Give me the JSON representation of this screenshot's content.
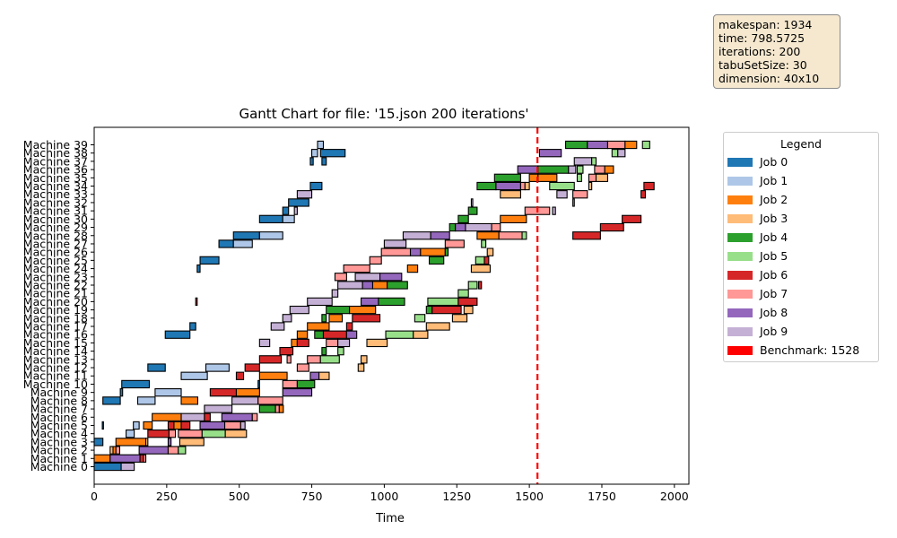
{
  "info": [
    "makespan: 1934",
    "time: 798.5725",
    "iterations: 200",
    "tabuSetSize: 30",
    "dimension: 40x10"
  ],
  "chart_data": {
    "type": "gantt",
    "title": "Gantt Chart for file: '15.json 200 iterations'",
    "xlabel": "Time",
    "ylabel": "",
    "xlim": [
      0,
      2050
    ],
    "xticks": [
      0,
      250,
      500,
      750,
      1000,
      1250,
      1500,
      1750,
      2000
    ],
    "machines": [
      "Machine 0",
      "Machine 1",
      "Machine 2",
      "Machine 3",
      "Machine 4",
      "Machine 5",
      "Machine 6",
      "Machine 7",
      "Machine 8",
      "Machine 9",
      "Machine 10",
      "Machine 11",
      "Machine 12",
      "Machine 13",
      "Machine 14",
      "Machine 15",
      "Machine 16",
      "Machine 17",
      "Machine 18",
      "Machine 19",
      "Machine 20",
      "Machine 21",
      "Machine 22",
      "Machine 23",
      "Machine 24",
      "Machine 25",
      "Machine 26",
      "Machine 27",
      "Machine 28",
      "Machine 29",
      "Machine 30",
      "Machine 31",
      "Machine 32",
      "Machine 33",
      "Machine 34",
      "Machine 35",
      "Machine 36",
      "Machine 37",
      "Machine 38",
      "Machine 39"
    ],
    "benchmark": 1528,
    "legend": {
      "title": "Legend",
      "placement": "outside-right",
      "items": [
        "Job 0",
        "Job 1",
        "Job 2",
        "Job 3",
        "Job 4",
        "Job 5",
        "Job 6",
        "Job 7",
        "Job 8",
        "Job 9",
        "Benchmark: 1528"
      ]
    },
    "job_colors": [
      "#1f77b4",
      "#aec7e8",
      "#ff7f0e",
      "#ffbb78",
      "#2ca02c",
      "#98df8a",
      "#d62728",
      "#ff9896",
      "#9467bd",
      "#c5b0d5"
    ],
    "benchmark_color": "#ff0000",
    "tasks": [
      [
        0,
        0,
        0,
        93
      ],
      [
        0,
        9,
        93,
        138
      ],
      [
        1,
        2,
        0,
        55
      ],
      [
        1,
        8,
        55,
        158
      ],
      [
        1,
        6,
        158,
        170
      ],
      [
        1,
        7,
        170,
        178
      ],
      [
        2,
        3,
        55,
        65
      ],
      [
        2,
        2,
        65,
        75
      ],
      [
        2,
        7,
        75,
        88
      ],
      [
        2,
        8,
        155,
        255
      ],
      [
        2,
        7,
        255,
        290
      ],
      [
        2,
        5,
        290,
        315
      ],
      [
        3,
        0,
        0,
        30
      ],
      [
        3,
        2,
        75,
        178
      ],
      [
        3,
        3,
        178,
        185
      ],
      [
        3,
        8,
        255,
        265
      ],
      [
        3,
        3,
        295,
        378
      ],
      [
        4,
        1,
        110,
        138
      ],
      [
        4,
        6,
        185,
        258
      ],
      [
        4,
        7,
        258,
        280
      ],
      [
        4,
        7,
        290,
        372
      ],
      [
        4,
        5,
        372,
        452
      ],
      [
        4,
        3,
        452,
        525
      ],
      [
        5,
        0,
        28,
        32
      ],
      [
        5,
        1,
        135,
        155
      ],
      [
        5,
        2,
        170,
        200
      ],
      [
        5,
        6,
        255,
        275
      ],
      [
        5,
        2,
        275,
        300
      ],
      [
        5,
        6,
        300,
        330
      ],
      [
        5,
        8,
        365,
        450
      ],
      [
        5,
        7,
        450,
        505
      ],
      [
        5,
        9,
        505,
        520
      ],
      [
        6,
        2,
        200,
        300
      ],
      [
        6,
        9,
        300,
        380
      ],
      [
        6,
        6,
        380,
        400
      ],
      [
        6,
        8,
        440,
        545
      ],
      [
        6,
        7,
        545,
        562
      ],
      [
        7,
        9,
        380,
        475
      ],
      [
        7,
        4,
        570,
        625
      ],
      [
        7,
        7,
        625,
        638
      ],
      [
        7,
        2,
        638,
        652
      ],
      [
        8,
        0,
        30,
        90
      ],
      [
        8,
        1,
        150,
        210
      ],
      [
        8,
        2,
        300,
        357
      ],
      [
        8,
        9,
        475,
        565
      ],
      [
        8,
        7,
        565,
        650
      ],
      [
        9,
        0,
        90,
        98
      ],
      [
        9,
        1,
        210,
        300
      ],
      [
        9,
        6,
        400,
        490
      ],
      [
        9,
        2,
        490,
        570
      ],
      [
        9,
        8,
        650,
        750
      ],
      [
        10,
        0,
        95,
        190
      ],
      [
        10,
        0,
        565,
        570
      ],
      [
        10,
        7,
        650,
        700
      ],
      [
        10,
        4,
        700,
        760
      ],
      [
        11,
        6,
        490,
        515
      ],
      [
        11,
        1,
        300,
        390
      ],
      [
        11,
        2,
        570,
        665
      ],
      [
        11,
        8,
        745,
        775
      ],
      [
        11,
        3,
        775,
        810
      ],
      [
        12,
        0,
        185,
        245
      ],
      [
        12,
        1,
        385,
        465
      ],
      [
        12,
        6,
        520,
        570
      ],
      [
        12,
        7,
        700,
        740
      ],
      [
        12,
        3,
        910,
        930
      ],
      [
        13,
        6,
        570,
        645
      ],
      [
        13,
        7,
        665,
        678
      ],
      [
        13,
        7,
        735,
        780
      ],
      [
        13,
        5,
        780,
        845
      ],
      [
        13,
        3,
        920,
        940
      ],
      [
        14,
        6,
        640,
        685
      ],
      [
        14,
        4,
        785,
        800
      ],
      [
        14,
        5,
        840,
        860
      ],
      [
        15,
        9,
        570,
        605
      ],
      [
        15,
        2,
        680,
        700
      ],
      [
        15,
        6,
        700,
        740
      ],
      [
        15,
        7,
        800,
        840
      ],
      [
        15,
        9,
        840,
        880
      ],
      [
        15,
        3,
        940,
        1010
      ],
      [
        16,
        0,
        245,
        330
      ],
      [
        16,
        2,
        700,
        735
      ],
      [
        16,
        4,
        760,
        790
      ],
      [
        16,
        6,
        790,
        870
      ],
      [
        16,
        8,
        870,
        905
      ],
      [
        16,
        5,
        1005,
        1100
      ],
      [
        16,
        3,
        1100,
        1150
      ],
      [
        17,
        0,
        330,
        350
      ],
      [
        17,
        9,
        610,
        655
      ],
      [
        17,
        2,
        735,
        810
      ],
      [
        17,
        6,
        870,
        890
      ],
      [
        17,
        3,
        1145,
        1225
      ],
      [
        18,
        9,
        650,
        680
      ],
      [
        18,
        4,
        785,
        800
      ],
      [
        18,
        2,
        810,
        855
      ],
      [
        18,
        6,
        890,
        985
      ],
      [
        18,
        5,
        1105,
        1140
      ],
      [
        18,
        3,
        1235,
        1285
      ],
      [
        19,
        9,
        675,
        740
      ],
      [
        19,
        4,
        800,
        880
      ],
      [
        19,
        2,
        880,
        970
      ],
      [
        19,
        4,
        1145,
        1165
      ],
      [
        19,
        6,
        1165,
        1265
      ],
      [
        19,
        3,
        1275,
        1305
      ],
      [
        20,
        6,
        350,
        355
      ],
      [
        20,
        9,
        735,
        820
      ],
      [
        20,
        8,
        920,
        980
      ],
      [
        20,
        4,
        980,
        1070
      ],
      [
        20,
        5,
        1150,
        1255
      ],
      [
        20,
        6,
        1255,
        1320
      ],
      [
        21,
        9,
        820,
        840
      ],
      [
        21,
        5,
        1255,
        1290
      ],
      [
        22,
        9,
        840,
        925
      ],
      [
        22,
        8,
        925,
        960
      ],
      [
        22,
        2,
        960,
        1010
      ],
      [
        22,
        4,
        1010,
        1080
      ],
      [
        22,
        5,
        1290,
        1320
      ],
      [
        22,
        6,
        1325,
        1335
      ],
      [
        23,
        7,
        830,
        870
      ],
      [
        23,
        9,
        900,
        985
      ],
      [
        23,
        8,
        985,
        1060
      ],
      [
        24,
        0,
        355,
        365
      ],
      [
        24,
        7,
        860,
        950
      ],
      [
        24,
        2,
        1080,
        1115
      ],
      [
        24,
        3,
        1300,
        1365
      ],
      [
        25,
        0,
        365,
        430
      ],
      [
        25,
        7,
        950,
        990
      ],
      [
        25,
        4,
        1155,
        1205
      ],
      [
        25,
        5,
        1315,
        1345
      ],
      [
        25,
        6,
        1345,
        1360
      ],
      [
        26,
        7,
        990,
        1090
      ],
      [
        26,
        8,
        1090,
        1125
      ],
      [
        26,
        2,
        1125,
        1210
      ],
      [
        26,
        4,
        1210,
        1220
      ],
      [
        26,
        3,
        1355,
        1375
      ],
      [
        27,
        0,
        430,
        480
      ],
      [
        27,
        1,
        480,
        545
      ],
      [
        27,
        9,
        1000,
        1075
      ],
      [
        27,
        7,
        1210,
        1275
      ],
      [
        27,
        5,
        1335,
        1350
      ],
      [
        28,
        0,
        480,
        570
      ],
      [
        28,
        1,
        570,
        650
      ],
      [
        28,
        9,
        1065,
        1160
      ],
      [
        28,
        8,
        1160,
        1225
      ],
      [
        28,
        2,
        1320,
        1395
      ],
      [
        28,
        7,
        1395,
        1475
      ],
      [
        28,
        5,
        1475,
        1490
      ],
      [
        28,
        6,
        1650,
        1745
      ],
      [
        29,
        4,
        1225,
        1245
      ],
      [
        29,
        8,
        1245,
        1280
      ],
      [
        29,
        9,
        1280,
        1370
      ],
      [
        29,
        7,
        1370,
        1400
      ],
      [
        29,
        6,
        1745,
        1825
      ],
      [
        30,
        0,
        570,
        650
      ],
      [
        30,
        1,
        650,
        690
      ],
      [
        30,
        4,
        1255,
        1290
      ],
      [
        30,
        2,
        1400,
        1490
      ],
      [
        30,
        6,
        1820,
        1885
      ],
      [
        31,
        0,
        650,
        670
      ],
      [
        31,
        9,
        690,
        700
      ],
      [
        31,
        4,
        1290,
        1320
      ],
      [
        31,
        7,
        1485,
        1570
      ],
      [
        31,
        9,
        1580,
        1590
      ],
      [
        32,
        0,
        670,
        740
      ],
      [
        32,
        9,
        1300,
        1305
      ],
      [
        32,
        9,
        1650,
        1655
      ],
      [
        33,
        9,
        700,
        750
      ],
      [
        33,
        3,
        1400,
        1470
      ],
      [
        33,
        9,
        1595,
        1630
      ],
      [
        33,
        7,
        1650,
        1700
      ],
      [
        33,
        6,
        1885,
        1900
      ],
      [
        34,
        0,
        745,
        785
      ],
      [
        34,
        4,
        1320,
        1385
      ],
      [
        34,
        8,
        1385,
        1470
      ],
      [
        34,
        7,
        1470,
        1485
      ],
      [
        34,
        3,
        1485,
        1500
      ],
      [
        34,
        5,
        1570,
        1655
      ],
      [
        34,
        3,
        1705,
        1715
      ],
      [
        34,
        6,
        1895,
        1930
      ],
      [
        35,
        4,
        1380,
        1470
      ],
      [
        35,
        2,
        1500,
        1530
      ],
      [
        35,
        2,
        1530,
        1595
      ],
      [
        35,
        5,
        1665,
        1680
      ],
      [
        35,
        7,
        1705,
        1730
      ],
      [
        35,
        3,
        1730,
        1770
      ],
      [
        36,
        8,
        1460,
        1530
      ],
      [
        36,
        4,
        1530,
        1635
      ],
      [
        36,
        9,
        1635,
        1660
      ],
      [
        36,
        5,
        1665,
        1685
      ],
      [
        36,
        7,
        1725,
        1760
      ],
      [
        36,
        2,
        1760,
        1790
      ],
      [
        37,
        0,
        745,
        755
      ],
      [
        37,
        0,
        785,
        800
      ],
      [
        37,
        9,
        1655,
        1715
      ],
      [
        37,
        5,
        1715,
        1730
      ],
      [
        38,
        1,
        750,
        770
      ],
      [
        38,
        0,
        780,
        865
      ],
      [
        38,
        8,
        1535,
        1610
      ],
      [
        38,
        5,
        1785,
        1805
      ],
      [
        38,
        9,
        1805,
        1830
      ],
      [
        39,
        1,
        770,
        790
      ],
      [
        39,
        4,
        1625,
        1700
      ],
      [
        39,
        8,
        1700,
        1770
      ],
      [
        39,
        7,
        1770,
        1830
      ],
      [
        39,
        2,
        1830,
        1870
      ],
      [
        39,
        5,
        1890,
        1915
      ]
    ]
  }
}
